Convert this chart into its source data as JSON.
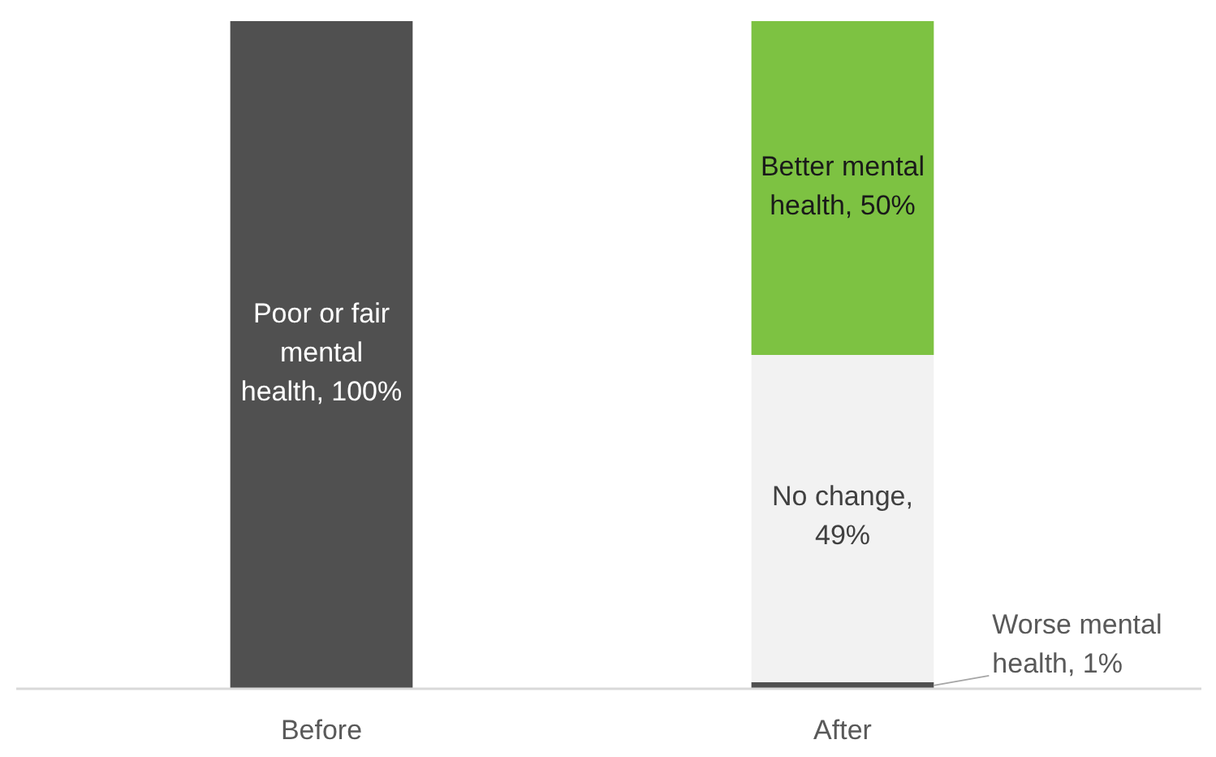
{
  "chart_data": {
    "type": "bar",
    "stacked": true,
    "categories": [
      "Before",
      "After"
    ],
    "series": [
      {
        "color": "#505050",
        "values": [
          100,
          null
        ],
        "value_labels": [
          "Poor or fair mental health, 100%",
          null
        ]
      },
      {
        "color": "#505050",
        "values": [
          null,
          1
        ],
        "value_labels": [
          null,
          "Worse mental health, 1%"
        ]
      },
      {
        "color": "#f2f2f2",
        "values": [
          null,
          49
        ],
        "value_labels": [
          null,
          "No change, 49%"
        ]
      },
      {
        "color": "#7dc242",
        "values": [
          null,
          50
        ],
        "value_labels": [
          null,
          "Better mental health, 50%"
        ]
      }
    ]
  }
}
